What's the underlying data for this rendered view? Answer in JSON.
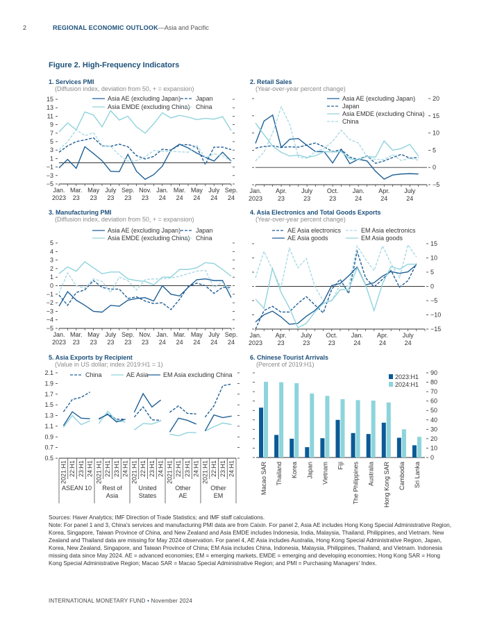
{
  "header": {
    "page_number": "2",
    "report_title": "REGIONAL ECONOMIC OUTLOOK",
    "report_subtitle": "—Asia and Pacific"
  },
  "figure_title": "Figure 2. High-Frequency Indicators",
  "colors": {
    "dark_blue": "#1f5f96",
    "light_teal": "#8fd3dc",
    "light_dashed": "#a9d9e4",
    "bar_2023": "#0b5a95",
    "bar_2024": "#8dd4dc",
    "zero_line": "#333333"
  },
  "chart_data": [
    {
      "type": "line",
      "title": "1. Services PMI",
      "subtitle": "(Diffusion index, deviation from 50, + = expansion)",
      "ylim": [
        -5,
        15
      ],
      "yticks": [
        "15",
        "13",
        "11",
        "9",
        "7",
        "5",
        "3",
        "1",
        "−1",
        "−3",
        "−5"
      ],
      "ytick_values": [
        15,
        13,
        11,
        9,
        7,
        5,
        3,
        1,
        -1,
        -3,
        -5
      ],
      "axis_labels_side": "left",
      "x_tick_labels": [
        [
          "Jan.",
          "2023"
        ],
        [
          "Mar.",
          "23"
        ],
        [
          "May",
          "23"
        ],
        [
          "July",
          "23"
        ],
        [
          "Sep.",
          "23"
        ],
        [
          "Nov.",
          "23"
        ],
        [
          "Jan.",
          "24"
        ],
        [
          "Mar.",
          "24"
        ],
        [
          "May",
          "24"
        ],
        [
          "July",
          "24"
        ],
        [
          "Sep.",
          "24"
        ]
      ],
      "x_range": "Jan. 2023 – Sep. 2024 (monthly)",
      "series": [
        {
          "name": "Asia AE (excluding Japan)",
          "style": "solid-dark",
          "values": [
            -1.2,
            0.8,
            -1.3,
            3.8,
            2.2,
            0.5,
            -2,
            -2.1,
            2,
            -2,
            -3.9,
            -2.8,
            -0.8,
            3,
            4.4,
            3.5,
            2.3,
            1.3,
            0.4,
            2.5,
            0.4
          ]
        },
        {
          "name": "Japan",
          "style": "dashed-dark",
          "values": [
            2.5,
            4,
            5,
            5.4,
            5.9,
            4,
            3.9,
            4.4,
            3.8,
            1.7,
            0.9,
            1.5,
            3.2,
            3,
            4.2,
            4.3,
            3.7,
            -0.4,
            3.7,
            3.7,
            3.1
          ]
        },
        {
          "name": "Asia EMDE (excluding China)",
          "style": "solid-light",
          "values": [
            7.3,
            9.4,
            7.8,
            12,
            11.3,
            8.5,
            12.3,
            10.1,
            11,
            8.5,
            7,
            9.2,
            11.8,
            10.6,
            11.2,
            10.8,
            10.2,
            10.5,
            10.3,
            10.9,
            7.6
          ]
        },
        {
          "name": "China",
          "style": "dashed-light",
          "values": [
            3.1,
            5,
            7.8,
            6.4,
            7.1,
            4.1,
            3.9,
            1.8,
            0.4,
            0.5,
            1.4,
            2.9,
            2.7,
            2.7,
            2.6,
            2.5,
            4.1,
            1.2,
            2.1,
            1.7,
            0.3
          ]
        }
      ]
    },
    {
      "type": "line",
      "title": "2. Retail Sales",
      "subtitle": "(Year-over-year percent change)",
      "ylim": [
        -5,
        20
      ],
      "yticks": [
        "20",
        "15",
        "10",
        "5",
        "0",
        "−5"
      ],
      "ytick_values": [
        20,
        15,
        10,
        5,
        0,
        -5
      ],
      "axis_labels_side": "right",
      "x_tick_labels": [
        [
          "Jan.",
          "2023"
        ],
        [
          "Apr.",
          "23"
        ],
        [
          "July",
          "23"
        ],
        [
          "Oct.",
          "23"
        ],
        [
          "Jan.",
          "24"
        ],
        [
          "Apr.",
          "24"
        ],
        [
          "July",
          "24"
        ]
      ],
      "x_range": "Jan. 2023 – Aug. 2024 (monthly)",
      "series": [
        {
          "name": "Asia AE (excluding Japan)",
          "style": "solid-dark",
          "values": [
            7,
            13.5,
            15.2,
            5.8,
            8.2,
            8.4,
            6.4,
            4.6,
            4.6,
            1.3,
            5.3,
            1.1,
            2.4,
            1.9,
            -1.1,
            -3.4,
            -2.2,
            -1.9,
            -1.8,
            -1.9
          ]
        },
        {
          "name": "Japan",
          "style": "dashed-dark",
          "values": [
            5.6,
            6.1,
            6.3,
            5.8,
            6,
            5.9,
            6.5,
            7.1,
            6,
            4.6,
            5.2,
            3,
            2.3,
            3.4,
            1.2,
            1.9,
            2.9,
            3.8,
            2.7,
            2.9
          ]
        },
        {
          "name": "Asia EMDE (excluding China)",
          "style": "solid-light",
          "values": [
            12.9,
            9.5,
            6.2,
            4.4,
            3.3,
            3.6,
            2.9,
            3.4,
            4.6,
            4.5,
            4.6,
            2.5,
            2.2,
            3.2,
            3,
            7.7,
            5,
            5.5,
            6.7,
            3.3
          ]
        },
        {
          "name": "China",
          "style": "dashed-light",
          "values": [
            1.9,
            4.5,
            10,
            17.6,
            12.5,
            3,
            2.7,
            4.6,
            5.5,
            7.6,
            10.8,
            8.1,
            7.1,
            3.1,
            2.3,
            2.3,
            3.7,
            2,
            2.7,
            2.1
          ]
        }
      ]
    },
    {
      "type": "line",
      "title": "3. Manufacturing PMI",
      "subtitle": "(Diffusion index, deviation from 50, + = expansion)",
      "ylim": [
        -5,
        5
      ],
      "yticks": [
        "5",
        "4",
        "3",
        "2",
        "1",
        "0",
        "−1",
        "−2",
        "−3",
        "−4",
        "−5"
      ],
      "ytick_values": [
        5,
        4,
        3,
        2,
        1,
        0,
        -1,
        -2,
        -3,
        -4,
        -5
      ],
      "axis_labels_side": "left",
      "x_tick_labels": [
        [
          "Jan.",
          "2023"
        ],
        [
          "Mar.",
          "23"
        ],
        [
          "May",
          "23"
        ],
        [
          "July",
          "23"
        ],
        [
          "Sep.",
          "23"
        ],
        [
          "Nov.",
          "23"
        ],
        [
          "Jan.",
          "24"
        ],
        [
          "Mar.",
          "24"
        ],
        [
          "May",
          "24"
        ],
        [
          "July",
          "24"
        ],
        [
          "Sep.",
          "24"
        ]
      ],
      "x_range": "Jan. 2023 – Sep. 2024 (monthly)",
      "series": [
        {
          "name": "Asia AE (excluding Japan)",
          "style": "solid-dark",
          "values": [
            -2.4,
            -0.7,
            -1.7,
            -2.3,
            -3,
            -3.1,
            -2.3,
            -2.4,
            -1.7,
            -1.5,
            -1.4,
            -1.8,
            0,
            -1,
            -1.2,
            -0.2,
            0.7,
            0.8,
            0.6,
            0.6,
            -1.4
          ]
        },
        {
          "name": "Japan",
          "style": "dashed-dark",
          "values": [
            -1.1,
            -2.3,
            -0.8,
            -0.5,
            0.6,
            -0.2,
            -0.4,
            -0.4,
            -1.5,
            -1.3,
            -1.8,
            -2.1,
            -2,
            -2.8,
            -1.6,
            -0.1,
            0.3,
            0,
            -0.9,
            -0.2,
            -0.2
          ]
        },
        {
          "name": "Asia EMDE (excluding China)",
          "style": "solid-light",
          "values": [
            1.4,
            2.2,
            1.7,
            2.8,
            2.1,
            1.4,
            1.6,
            1.6,
            0.8,
            0.6,
            0.5,
            0.1,
            1,
            1,
            1.9,
            1.9,
            2.1,
            2.7,
            2.6,
            1.9,
            1.1
          ]
        },
        {
          "name": "China",
          "style": "dashed-light",
          "values": [
            -0.9,
            1.5,
            0,
            -0.3,
            0.8,
            0.5,
            -0.8,
            1,
            0.6,
            -0.5,
            0.7,
            0.8,
            0.8,
            0.9,
            1.1,
            1.4,
            1.7,
            1.8,
            -0.2,
            0.4,
            -0.7
          ]
        }
      ]
    },
    {
      "type": "line",
      "title": "4. Asia Electronics and Total Goods Exports",
      "subtitle": "(Year-over-year percent change)",
      "ylim": [
        -15,
        15
      ],
      "yticks": [
        "15",
        "10",
        "5",
        "0",
        "−5",
        "−10",
        "−15"
      ],
      "ytick_values": [
        15,
        10,
        5,
        0,
        -5,
        -10,
        -15
      ],
      "axis_labels_side": "right",
      "x_tick_labels": [
        [
          "Jan.",
          "2023"
        ],
        [
          "Apr.",
          "23"
        ],
        [
          "July",
          "23"
        ],
        [
          "Oct.",
          "23"
        ],
        [
          "Jan.",
          "24"
        ],
        [
          "Apr.",
          "24"
        ],
        [
          "July",
          "24"
        ]
      ],
      "x_range": "Jan. 2023 – Aug. 2024 (monthly)",
      "series": [
        {
          "name": "AE Asia electronics",
          "style": "dashed-dark",
          "values": [
            -15,
            -8.5,
            -7,
            -9,
            -9,
            -6,
            -3.6,
            -6.5,
            -9.3,
            -1,
            2.5,
            -2.5,
            12.3,
            3,
            -0.2,
            2.5,
            5.6,
            -0.3,
            2,
            8
          ]
        },
        {
          "name": "EM Asia electronics",
          "style": "dashed-light",
          "values": [
            3,
            12.3,
            6,
            -0.5,
            13.4,
            6.5,
            9.8,
            0,
            -5,
            -5,
            0.5,
            0,
            14.2,
            9.5,
            5.5,
            14.2,
            8,
            3,
            14.6,
            10.3
          ]
        },
        {
          "name": "AE Asia goods",
          "style": "solid-dark",
          "values": [
            -12.5,
            -10,
            -8.7,
            -10.7,
            -13.3,
            -13,
            -10.5,
            -8.5,
            -5.5,
            0.3,
            1,
            3.7,
            6.8,
            0.5,
            1.3,
            3.6,
            5.2,
            4.6,
            5.1,
            7.6
          ]
        },
        {
          "name": "EM Asia goods",
          "style": "solid-light",
          "values": [
            -4.5,
            -7.7,
            6.3,
            -2,
            -7.5,
            -14.5,
            -13,
            -9,
            -6,
            -5,
            -1.2,
            -1,
            6.5,
            0.5,
            -8.5,
            1,
            7,
            6,
            7.8,
            7.8
          ]
        }
      ]
    },
    {
      "type": "line",
      "title": "5. Asia Exports by Recipient",
      "subtitle": "(Value in US dollar; index 2019:H1 = 1)",
      "ylim": [
        0.5,
        2.1
      ],
      "yticks": [
        "2.1",
        "1.9",
        "1.7",
        "1.5",
        "1.3",
        "1.1",
        "0.9",
        "0.7",
        "0.5"
      ],
      "ytick_values": [
        2.1,
        1.9,
        1.7,
        1.5,
        1.3,
        1.1,
        0.9,
        0.7,
        0.5
      ],
      "period_labels": [
        "2021:H1",
        "22:H1",
        "23:H1",
        "24:H1"
      ],
      "groups": [
        [
          "ASEAN 10"
        ],
        [
          "Rest of",
          "Asia"
        ],
        [
          "United",
          "States"
        ],
        [
          "Other",
          "AE"
        ],
        [
          "Other",
          "EM"
        ]
      ],
      "series": [
        {
          "name": "China",
          "style": "dashed-dark",
          "values": [
            [
              1.37,
              1.6,
              1.64,
              1.74
            ],
            [
              1.23,
              1.33,
              1.23,
              1.23
            ],
            [
              1.27,
              1.46,
              1.22,
              1.21
            ],
            [
              1.36,
              1.48,
              1.34,
              1.33
            ],
            [
              1.27,
              1.48,
              1.86,
              1.89
            ]
          ]
        },
        {
          "name": "AE Asia",
          "style": "solid-light",
          "values": [
            [
              1.08,
              1.3,
              1.13,
              1.2
            ],
            [
              1.15,
              1.38,
              1.2,
              1.18
            ],
            [
              1.03,
              1.15,
              1.14,
              1.2
            ],
            [
              0.95,
              0.92,
              0.98,
              0.98
            ],
            [
              1.01,
              1.09,
              1.16,
              1.13
            ]
          ]
        },
        {
          "name": "EM Asia excluding China",
          "style": "solid-dark",
          "values": [
            [
              1.11,
              1.37,
              1.25,
              1.24
            ],
            [
              1.24,
              1.32,
              1.18,
              1.23
            ],
            [
              1.36,
              1.71,
              1.46,
              1.59
            ],
            [
              0.99,
              1.25,
              1.21,
              1.14
            ],
            [
              1.01,
              1.31,
              1.26,
              1.29
            ]
          ]
        }
      ]
    },
    {
      "type": "bar",
      "title": "6. Chinese Tourist Arrivals",
      "subtitle": "(Percent of 2019:H1)",
      "ylim": [
        0,
        90
      ],
      "yticks": [
        "90",
        "80",
        "70",
        "60",
        "50",
        "40",
        "30",
        "20",
        "10",
        "0"
      ],
      "ytick_values": [
        90,
        80,
        70,
        60,
        50,
        40,
        30,
        20,
        10,
        0
      ],
      "categories": [
        "Macao SAR",
        "Thailand",
        "Korea",
        "Japan",
        "Vietnam",
        "Fiji",
        "The Philippines",
        "Australia",
        "Hong Kong SAR",
        "Cambodia",
        "Sri Lanka"
      ],
      "series": [
        {
          "name": "2023:H1",
          "values": [
            53,
            24,
            20,
            11,
            20.5,
            40,
            26,
            25,
            37,
            21,
            13
          ]
        },
        {
          "name": "2024:H1",
          "values": [
            80.5,
            80,
            79,
            68,
            65.5,
            62,
            61,
            60.5,
            58.5,
            30,
            22
          ]
        }
      ]
    }
  ],
  "notes": {
    "sources": "Sources: Haver Analytics; IMF Direction of Trade Statistics; and IMF staff calculations.",
    "note": "Note: For panel 1 and 3, China's services and manufacturing PMI data are from Caixin. For panel 2, Asia AE includes Hong Kong Special Administrative Region, Korea, Singapore, Taiwan Province of China, and New Zealand and Asia EMDE includes Indonesia, India, Malaysia, Thailand, Philippines, and Vietnam. New Zealand and Thailand data are missing for May 2024 observation. For panel 4, AE Asia includes Australia, Hong Kong Special Administrative Region, Japan, Korea, New Zealand, Singapore, and Taiwan Province of China; EM Asia includes China, Indonesia, Malaysia, Philippines, Thailand, and Vietnam. Indonesia missing data since May 2024. AE = advanced economies; EM = emerging markets, EMDE = emerging and developing economies; Hong Kong SAR = Hong Kong Special Administrative Region; Macao SAR = Macao Special Administrative Region; and PMI = Purchasing Managers' Index."
  },
  "footer": {
    "org": "INTERNATIONAL MONETARY FUND",
    "separator": "•",
    "date": "November 2024"
  }
}
